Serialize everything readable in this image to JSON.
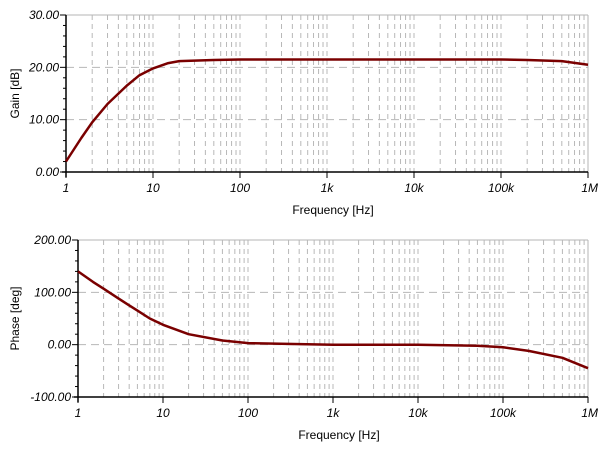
{
  "chart_data": [
    {
      "type": "line",
      "title": "",
      "xlabel": "Frequency [Hz]",
      "ylabel": "Gain [dB]",
      "xscale": "log",
      "xlim": [
        1,
        1000000
      ],
      "ylim": [
        0,
        30
      ],
      "x_ticks": [
        "1",
        "10",
        "100",
        "1k",
        "10k",
        "100k",
        "1M"
      ],
      "y_ticks": [
        "0.00",
        "10.00",
        "20.00",
        "30.00"
      ],
      "grid": true,
      "line_color": "#7a0000",
      "series": [
        {
          "name": "Gain",
          "x": [
            1,
            1.5,
            2,
            3,
            5,
            7,
            10,
            15,
            20,
            50,
            100,
            1000,
            10000,
            100000,
            200000,
            500000,
            1000000
          ],
          "values": [
            2,
            6.5,
            9.5,
            13,
            16.5,
            18.5,
            19.8,
            20.8,
            21.2,
            21.4,
            21.5,
            21.5,
            21.5,
            21.5,
            21.4,
            21.2,
            20.5
          ]
        }
      ]
    },
    {
      "type": "line",
      "title": "",
      "xlabel": "Frequency [Hz]",
      "ylabel": "Phase [deg]",
      "xscale": "log",
      "xlim": [
        1,
        1000000
      ],
      "ylim": [
        -100,
        200
      ],
      "x_ticks": [
        "1",
        "10",
        "100",
        "1k",
        "10k",
        "100k",
        "1M"
      ],
      "y_ticks": [
        "-100.00",
        "0.00",
        "100.00",
        "200.00"
      ],
      "grid": true,
      "line_color": "#7a0000",
      "series": [
        {
          "name": "Phase",
          "x": [
            1,
            1.5,
            2,
            3,
            5,
            7,
            10,
            20,
            50,
            100,
            1000,
            10000,
            50000,
            100000,
            200000,
            500000,
            1000000
          ],
          "values": [
            140,
            120,
            107,
            88,
            65,
            50,
            38,
            20,
            8,
            3,
            0,
            0,
            -2,
            -5,
            -12,
            -25,
            -45
          ]
        }
      ]
    }
  ]
}
